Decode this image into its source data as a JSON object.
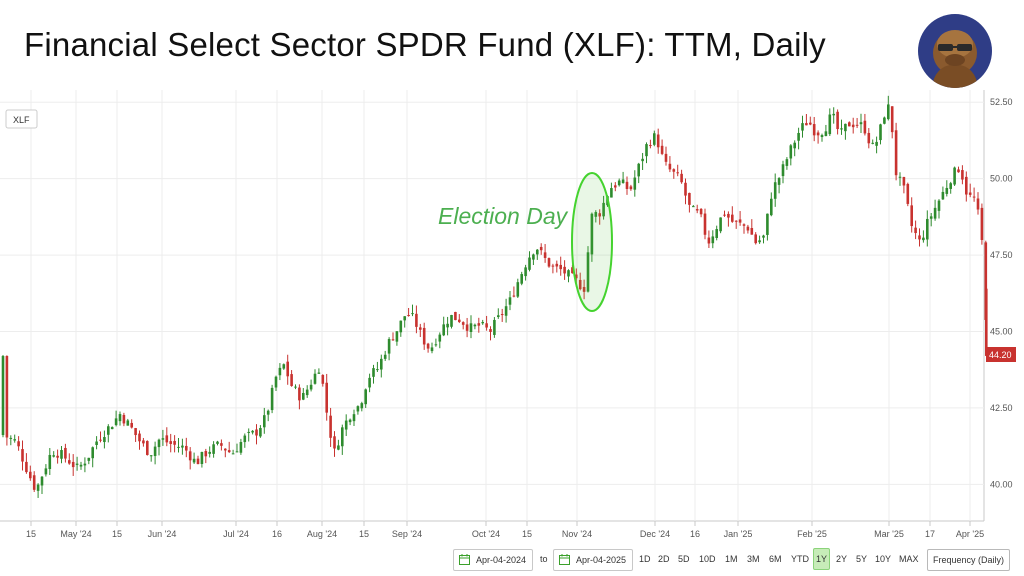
{
  "title": "Financial Select Sector SPDR Fund (XLF): TTM, Daily",
  "colors": {
    "up": "#2e8b2e",
    "down": "#c8322f",
    "accent": "#55c43a",
    "annotation": "#4caf50"
  },
  "chart_data": {
    "type": "candlestick",
    "symbol": "XLF",
    "title": "Financial Select Sector SPDR Fund (XLF): TTM, Daily",
    "ylim": [
      38.8,
      52.9
    ],
    "y_ticks": [
      "40.00",
      "42.50",
      "45.00",
      "47.50",
      "50.00",
      "52.50"
    ],
    "x_ticks": [
      "15",
      "May '24",
      "15",
      "Jun '24",
      "Jul '24",
      "16",
      "Aug '24",
      "15",
      "Sep '24",
      "Oct '24",
      "15",
      "Nov '24",
      "Dec '24",
      "16",
      "Jan '25",
      "Feb '25",
      "Mar '25",
      "17",
      "Apr '25"
    ],
    "last_price": "44.20",
    "annotation": {
      "text": "Election Day",
      "date": "Nov 6 '24"
    },
    "close_path": [
      [
        4,
        41.6
      ],
      [
        16,
        41.4
      ],
      [
        28,
        40.4
      ],
      [
        36,
        39.8
      ],
      [
        42,
        40.3
      ],
      [
        52,
        41.1
      ],
      [
        60,
        41.0
      ],
      [
        68,
        40.8
      ],
      [
        78,
        40.5
      ],
      [
        88,
        40.9
      ],
      [
        98,
        41.5
      ],
      [
        110,
        41.9
      ],
      [
        120,
        42.3
      ],
      [
        130,
        41.9
      ],
      [
        140,
        41.4
      ],
      [
        150,
        41.0
      ],
      [
        160,
        41.5
      ],
      [
        172,
        41.3
      ],
      [
        184,
        41.2
      ],
      [
        196,
        40.7
      ],
      [
        208,
        41.1
      ],
      [
        220,
        41.3
      ],
      [
        232,
        41.0
      ],
      [
        244,
        41.5
      ],
      [
        256,
        41.7
      ],
      [
        266,
        42.2
      ],
      [
        276,
        43.5
      ],
      [
        284,
        43.9
      ],
      [
        292,
        43.2
      ],
      [
        302,
        42.8
      ],
      [
        312,
        43.4
      ],
      [
        320,
        43.9
      ],
      [
        326,
        42.5
      ],
      [
        334,
        41.0
      ],
      [
        342,
        41.8
      ],
      [
        352,
        42.4
      ],
      [
        360,
        42.6
      ],
      [
        368,
        43.5
      ],
      [
        378,
        43.8
      ],
      [
        388,
        44.6
      ],
      [
        398,
        45.1
      ],
      [
        406,
        45.6
      ],
      [
        414,
        45.4
      ],
      [
        422,
        44.8
      ],
      [
        430,
        44.4
      ],
      [
        440,
        45.0
      ],
      [
        450,
        45.5
      ],
      [
        460,
        45.4
      ],
      [
        470,
        45.1
      ],
      [
        480,
        45.2
      ],
      [
        490,
        45.0
      ],
      [
        500,
        45.5
      ],
      [
        510,
        46.0
      ],
      [
        520,
        46.8
      ],
      [
        528,
        47.4
      ],
      [
        536,
        47.8
      ],
      [
        544,
        47.4
      ],
      [
        552,
        47.1
      ],
      [
        562,
        47.0
      ],
      [
        570,
        46.8
      ],
      [
        578,
        46.6
      ],
      [
        584,
        46.4
      ],
      [
        592,
        48.8
      ],
      [
        600,
        48.9
      ],
      [
        610,
        49.7
      ],
      [
        620,
        49.9
      ],
      [
        630,
        49.6
      ],
      [
        640,
        50.5
      ],
      [
        648,
        51.2
      ],
      [
        656,
        51.4
      ],
      [
        664,
        50.5
      ],
      [
        672,
        50.2
      ],
      [
        680,
        50.0
      ],
      [
        690,
        49.0
      ],
      [
        700,
        48.8
      ],
      [
        708,
        47.9
      ],
      [
        716,
        48.4
      ],
      [
        724,
        48.9
      ],
      [
        732,
        48.6
      ],
      [
        740,
        48.5
      ],
      [
        748,
        48.4
      ],
      [
        756,
        47.9
      ],
      [
        764,
        48.1
      ],
      [
        772,
        49.6
      ],
      [
        780,
        50.1
      ],
      [
        790,
        50.9
      ],
      [
        800,
        51.6
      ],
      [
        808,
        51.9
      ],
      [
        816,
        51.5
      ],
      [
        824,
        51.6
      ],
      [
        832,
        52.1
      ],
      [
        840,
        51.4
      ],
      [
        848,
        51.8
      ],
      [
        856,
        51.8
      ],
      [
        864,
        51.7
      ],
      [
        872,
        51.0
      ],
      [
        878,
        51.3
      ],
      [
        884,
        52.1
      ],
      [
        890,
        52.4
      ],
      [
        896,
        50.2
      ],
      [
        904,
        49.6
      ],
      [
        912,
        48.4
      ],
      [
        920,
        47.9
      ],
      [
        928,
        48.6
      ],
      [
        936,
        49.1
      ],
      [
        944,
        49.6
      ],
      [
        952,
        50.1
      ],
      [
        960,
        50.4
      ],
      [
        966,
        49.6
      ],
      [
        970,
        49.4
      ],
      [
        976,
        49.3
      ],
      [
        982,
        47.9
      ],
      [
        986,
        45.4
      ],
      [
        988,
        44.2
      ]
    ]
  },
  "toolbar": {
    "from_date": "Apr-04-2024",
    "to_label": "to",
    "to_date": "Apr-04-2025",
    "ranges": [
      "1D",
      "2D",
      "5D",
      "10D",
      "1M",
      "3M",
      "6M",
      "YTD",
      "1Y",
      "2Y",
      "5Y",
      "10Y",
      "MAX"
    ],
    "active_range": "1Y",
    "frequency": "Frequency (Daily)"
  }
}
